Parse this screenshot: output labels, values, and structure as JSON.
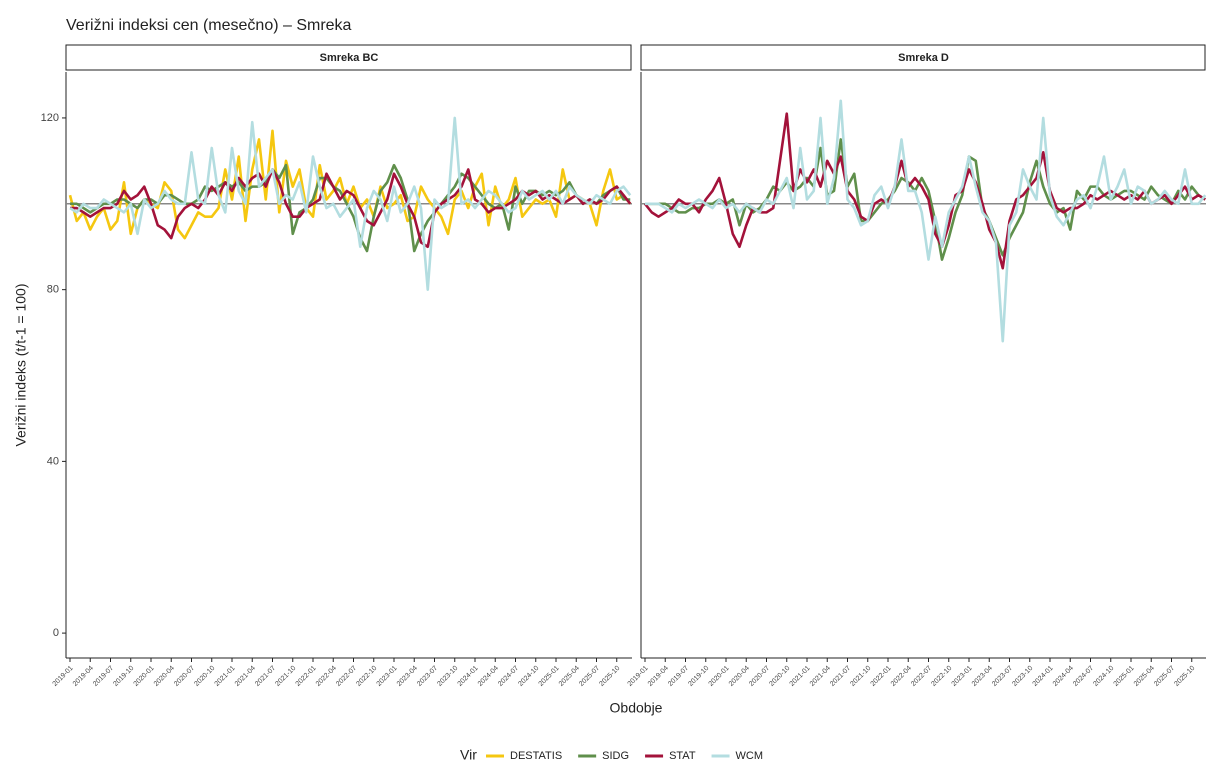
{
  "title": "Verižni indeksi cen (mesečno) – Smreka",
  "x_label": "Obdobje",
  "y_label": "Verižni indeks (t/t-1 = 100)",
  "legend_title": "Vir",
  "chart_data": [
    {
      "type": "line",
      "title": "Smreka BC",
      "categories": [
        "2019-01",
        null,
        null,
        "2019-04",
        null,
        null,
        "2019-07",
        null,
        null,
        "2019-10",
        null,
        null,
        "2020-01",
        null,
        null,
        "2020-04",
        null,
        null,
        "2020-07",
        null,
        null,
        "2020-10",
        null,
        null,
        "2021-01",
        null,
        null,
        "2021-04",
        null,
        null,
        "2021-07",
        null,
        null,
        "2021-10",
        null,
        null,
        "2022-01",
        null,
        null,
        "2022-04",
        null,
        null,
        "2022-07",
        null,
        null,
        "2022-10",
        null,
        null,
        "2023-01",
        null,
        null,
        "2023-04",
        null,
        null,
        "2023-07",
        null,
        null,
        "2023-10",
        null,
        null,
        "2024-01",
        null,
        null,
        "2024-04",
        null,
        null,
        "2024-07",
        null,
        null,
        "2024-10",
        null,
        null,
        "2025-01",
        null,
        null,
        "2025-04",
        null,
        null,
        "2025-07",
        null,
        null,
        "2025-10",
        null,
        null
      ],
      "ylim": [
        -5.8,
        130.7
      ],
      "yticks": [
        0,
        40,
        80,
        120
      ],
      "reference_line": 100,
      "series": [
        {
          "name": "DESTATIS",
          "color": "#f5c710",
          "values": [
            102,
            96,
            98,
            94,
            97,
            99,
            94,
            96,
            105,
            93,
            99,
            101,
            100,
            99,
            105,
            103,
            94,
            92,
            95,
            98,
            97,
            97,
            99,
            108,
            101,
            111,
            96,
            108,
            115,
            101,
            117,
            98,
            110,
            104,
            108,
            99,
            97,
            109,
            101,
            103,
            106,
            100,
            104,
            99,
            101,
            97,
            104,
            99,
            100,
            102,
            96,
            97,
            104,
            101,
            99,
            97,
            93,
            101,
            103,
            99,
            104,
            107,
            95,
            104,
            99,
            101,
            106,
            97,
            99,
            101,
            100,
            101,
            97,
            108,
            101,
            102,
            101,
            100,
            95,
            103,
            108,
            101,
            102,
            100
          ]
        },
        {
          "name": "SIDG",
          "color": "#5f8f4b",
          "values": [
            100,
            100,
            99,
            98,
            99,
            100,
            100,
            101,
            101,
            100,
            99,
            101,
            101,
            100,
            102,
            102,
            101,
            100,
            100,
            101,
            104,
            103,
            104,
            105,
            104,
            105,
            103,
            104,
            104,
            105,
            108,
            106,
            109,
            93,
            98,
            99,
            101,
            106,
            106,
            104,
            103,
            100,
            97,
            92,
            89,
            97,
            103,
            105,
            109,
            106,
            101,
            89,
            93,
            96,
            98,
            100,
            102,
            104,
            107,
            106,
            104,
            102,
            100,
            99,
            100,
            94,
            104,
            100,
            103,
            103,
            102,
            103,
            102,
            103,
            105,
            102,
            100,
            101,
            100,
            102,
            103,
            104,
            101,
            101
          ]
        },
        {
          "name": "STAT",
          "color": "#a3123a",
          "values": [
            99,
            99,
            98,
            97,
            98,
            99,
            99,
            100,
            103,
            101,
            102,
            104,
            100,
            95,
            94,
            92,
            97,
            99,
            100,
            99,
            101,
            104,
            102,
            105,
            103,
            106,
            104,
            106,
            107,
            104,
            108,
            105,
            100,
            97,
            97,
            99,
            100,
            101,
            107,
            104,
            101,
            103,
            102,
            99,
            96,
            95,
            98,
            101,
            107,
            104,
            100,
            97,
            91,
            90,
            98,
            100,
            101,
            102,
            104,
            108,
            101,
            100,
            98,
            99,
            99,
            100,
            101,
            103,
            102,
            103,
            101,
            102,
            101,
            100,
            101,
            102,
            100,
            101,
            100,
            101,
            103,
            104,
            102,
            100
          ]
        },
        {
          "name": "WCM",
          "color": "#b3dde0",
          "values": [
            99,
            98,
            100,
            99,
            99,
            101,
            100,
            99,
            98,
            100,
            93,
            101,
            99,
            100,
            103,
            101,
            100,
            100,
            112,
            101,
            100,
            113,
            102,
            98,
            113,
            103,
            100,
            119,
            104,
            106,
            108,
            100,
            102,
            101,
            105,
            98,
            111,
            104,
            99,
            100,
            97,
            99,
            101,
            90,
            99,
            103,
            101,
            96,
            104,
            98,
            100,
            104,
            99,
            80,
            101,
            99,
            100,
            120,
            100,
            101,
            99,
            101,
            103,
            102,
            100,
            98,
            99,
            103,
            101,
            102,
            103,
            101,
            103,
            100,
            104,
            102,
            101,
            100,
            102,
            101,
            100,
            103,
            104,
            102
          ]
        }
      ]
    },
    {
      "type": "line",
      "title": "Smreka D",
      "categories": [
        "2019-01",
        null,
        null,
        "2019-04",
        null,
        null,
        "2019-07",
        null,
        null,
        "2019-10",
        null,
        null,
        "2020-01",
        null,
        null,
        "2020-04",
        null,
        null,
        "2020-07",
        null,
        null,
        "2020-10",
        null,
        null,
        "2021-01",
        null,
        null,
        "2021-04",
        null,
        null,
        "2021-07",
        null,
        null,
        "2021-10",
        null,
        null,
        "2022-01",
        null,
        null,
        "2022-04",
        null,
        null,
        "2022-07",
        null,
        null,
        "2022-10",
        null,
        null,
        "2023-01",
        null,
        null,
        "2023-04",
        null,
        null,
        "2023-07",
        null,
        null,
        "2023-10",
        null,
        null,
        "2024-01",
        null,
        null,
        "2024-04",
        null,
        null,
        "2024-07",
        null,
        null,
        "2024-10",
        null,
        null,
        "2025-01",
        null,
        null,
        "2025-04",
        null,
        null,
        "2025-07",
        null,
        null,
        "2025-10",
        null,
        null
      ],
      "ylim": [
        -5.8,
        130.7
      ],
      "reference_line": 100,
      "series": [
        {
          "name": "SIDG",
          "color": "#5f8f4b",
          "values": [
            100,
            100,
            100,
            100,
            99,
            98,
            98,
            99,
            99,
            100,
            100,
            101,
            100,
            101,
            95,
            100,
            98,
            99,
            101,
            104,
            103,
            105,
            103,
            104,
            106,
            104,
            113,
            102,
            103,
            115,
            104,
            107,
            96,
            96,
            98,
            100,
            101,
            103,
            106,
            105,
            103,
            106,
            103,
            96,
            87,
            92,
            98,
            102,
            111,
            110,
            99,
            96,
            92,
            88,
            92,
            95,
            98,
            105,
            110,
            104,
            100,
            98,
            99,
            94,
            103,
            101,
            104,
            104,
            102,
            101,
            102,
            103,
            103,
            102,
            101,
            104,
            102,
            101,
            100,
            103,
            101,
            104,
            102,
            101
          ]
        },
        {
          "name": "STAT",
          "color": "#a3123a",
          "values": [
            100,
            98,
            97,
            98,
            99,
            101,
            100,
            100,
            98,
            101,
            103,
            106,
            100,
            93,
            90,
            95,
            99,
            98,
            98,
            99,
            110,
            121,
            103,
            108,
            105,
            108,
            104,
            110,
            107,
            111,
            103,
            101,
            97,
            96,
            100,
            101,
            100,
            104,
            110,
            104,
            106,
            104,
            101,
            93,
            90,
            95,
            102,
            103,
            108,
            105,
            100,
            94,
            91,
            85,
            96,
            101,
            102,
            104,
            106,
            112,
            103,
            99,
            98,
            99,
            99,
            100,
            102,
            101,
            102,
            103,
            102,
            101,
            102,
            101,
            103,
            100,
            101,
            102,
            100,
            102,
            104,
            101,
            102,
            101
          ]
        },
        {
          "name": "WCM",
          "color": "#b3dde0",
          "values": [
            100,
            100,
            100,
            99,
            98,
            100,
            99,
            100,
            101,
            100,
            99,
            101,
            99,
            100,
            98,
            100,
            99,
            98,
            101,
            100,
            103,
            106,
            99,
            113,
            101,
            103,
            120,
            100,
            106,
            124,
            101,
            99,
            95,
            96,
            102,
            104,
            99,
            104,
            115,
            103,
            103,
            98,
            87,
            97,
            90,
            98,
            101,
            104,
            111,
            104,
            98,
            96,
            91,
            68,
            95,
            98,
            108,
            104,
            101,
            120,
            102,
            97,
            95,
            98,
            101,
            102,
            99,
            104,
            111,
            101,
            104,
            108,
            100,
            104,
            103,
            100,
            101,
            103,
            101,
            100,
            108,
            100,
            100,
            102
          ]
        }
      ]
    }
  ]
}
